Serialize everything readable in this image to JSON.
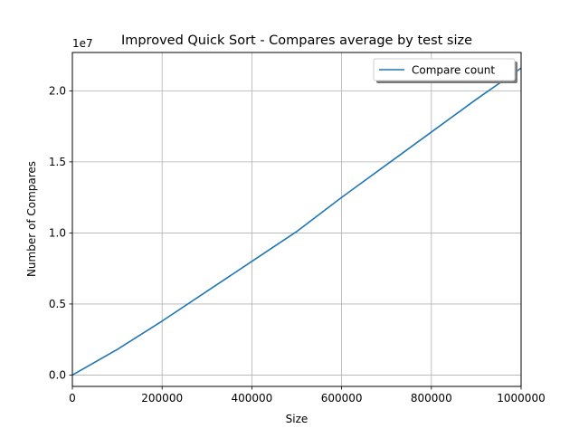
{
  "chart_data": {
    "type": "line",
    "title": "Improved Quick Sort - Compares average by test size",
    "xlabel": "Size",
    "ylabel": "Number of Compares",
    "y_scale_label": "1e7",
    "xlim": [
      0,
      1000000
    ],
    "ylim": [
      -800000,
      22700000
    ],
    "grid": true,
    "legend_position": "top-right",
    "x_ticks": [
      0,
      200000,
      400000,
      600000,
      800000,
      1000000
    ],
    "x_tick_labels": [
      "0",
      "200000",
      "400000",
      "600000",
      "800000",
      "1000000"
    ],
    "y_ticks": [
      0,
      5000000,
      10000000,
      15000000,
      20000000
    ],
    "y_tick_labels": [
      "0.0",
      "0.5",
      "1.0",
      "1.5",
      "2.0"
    ],
    "series": [
      {
        "name": "Compare count",
        "color": "#1f77b4",
        "x": [
          0,
          100000,
          200000,
          300000,
          400000,
          500000,
          600000,
          700000,
          800000,
          900000,
          1000000
        ],
        "y": [
          0,
          1800000,
          3800000,
          5900000,
          8000000,
          10100000,
          12500000,
          14800000,
          17100000,
          19400000,
          21600000
        ]
      }
    ]
  }
}
